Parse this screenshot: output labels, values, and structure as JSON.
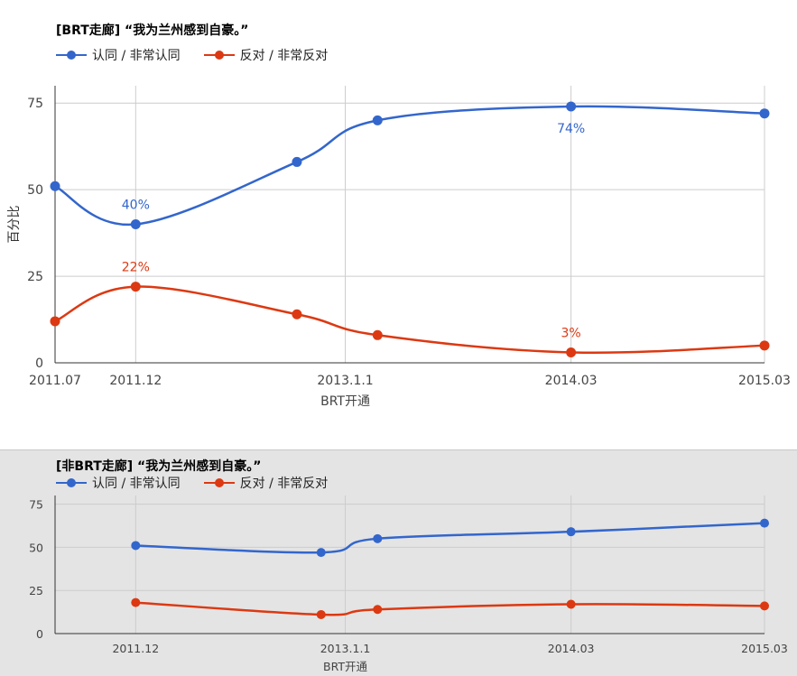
{
  "chart_data": [
    {
      "type": "line",
      "title": "[BRT走廊] “我为兰州感到自豪。”",
      "xlabel": "BRT开通",
      "ylabel": "百分比",
      "ylim": [
        0,
        80
      ],
      "yticks": [
        0,
        25,
        50,
        75
      ],
      "x_ticks": [
        {
          "label": "2011.07",
          "x": 0
        },
        {
          "label": "2011.12",
          "x": 5
        },
        {
          "label": "2013.1.1",
          "x": 18
        },
        {
          "label": "2014.03",
          "x": 32
        },
        {
          "label": "2015.03",
          "x": 44
        }
      ],
      "grid": true,
      "legend": "top",
      "series": [
        {
          "name": "认同 / 非常认同",
          "color": "#3366cc",
          "points": [
            [
              0,
              51
            ],
            [
              5,
              40
            ],
            [
              15,
              58
            ],
            [
              20,
              70
            ],
            [
              32,
              74
            ],
            [
              44,
              72
            ]
          ],
          "labels": [
            {
              "x": 5,
              "y": 40,
              "text": "40%"
            },
            {
              "x": 32,
              "y": 74,
              "text": "74%",
              "below": true
            }
          ]
        },
        {
          "name": "反对 / 非常反对",
          "color": "#dc3912",
          "points": [
            [
              0,
              12
            ],
            [
              5,
              22
            ],
            [
              15,
              14
            ],
            [
              20,
              8
            ],
            [
              32,
              3
            ],
            [
              44,
              5
            ]
          ],
          "labels": [
            {
              "x": 5,
              "y": 22,
              "text": "22%"
            },
            {
              "x": 32,
              "y": 3,
              "text": "3%"
            }
          ]
        }
      ]
    },
    {
      "type": "line",
      "title": "[非BRT走廊] “我为兰州感到自豪。”",
      "xlabel": "BRT开通",
      "ylabel": "",
      "ylim": [
        0,
        80
      ],
      "yticks": [
        0,
        25,
        50,
        75
      ],
      "x_ticks": [
        {
          "label": "2011.12",
          "x": 5
        },
        {
          "label": "2013.1.1",
          "x": 18
        },
        {
          "label": "2014.03",
          "x": 32
        },
        {
          "label": "2015.03",
          "x": 44
        }
      ],
      "grid": true,
      "legend": "top",
      "series": [
        {
          "name": "认同 / 非常认同",
          "color": "#3366cc",
          "points": [
            [
              5,
              51
            ],
            [
              16.5,
              47
            ],
            [
              20,
              55
            ],
            [
              32,
              59
            ],
            [
              44,
              64
            ]
          ],
          "labels": []
        },
        {
          "name": "反对 / 非常反对",
          "color": "#dc3912",
          "points": [
            [
              5,
              18
            ],
            [
              16.5,
              11
            ],
            [
              20,
              14
            ],
            [
              32,
              17
            ],
            [
              44,
              16
            ]
          ],
          "labels": []
        }
      ]
    }
  ]
}
